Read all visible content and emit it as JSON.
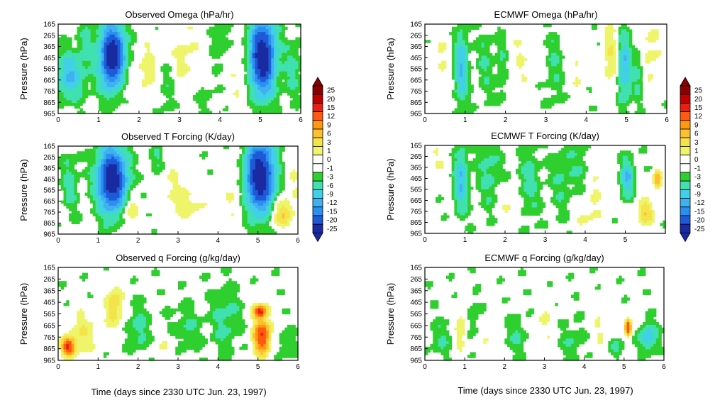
{
  "page": {
    "xlabel_left": "Time (days since 2330 UTC Jun. 23, 1997)",
    "xlabel_right": "Time (days since 2330 UTC Jun. 23, 1997)"
  },
  "palette": {
    "levels": [
      "25",
      "20",
      "15",
      "12",
      "9",
      "6",
      "3",
      "1",
      "0",
      "-1",
      "-3",
      "-6",
      "-9",
      "-12",
      "-15",
      "-20",
      "-25"
    ],
    "colors": [
      "#8b0000",
      "#c00000",
      "#e8200f",
      "#ff5a10",
      "#ff9a10",
      "#ffc030",
      "#f5e34a",
      "#eef56a",
      "#ffffff",
      "#ffffff",
      "#2ecf2e",
      "#40e0b0",
      "#40d0e8",
      "#40b0f0",
      "#2890f0",
      "#1e5ad8",
      "#1a2aa0"
    ],
    "background": "#ffffff"
  },
  "chart_data": [
    {
      "type": "heatmap",
      "title": "Observed Omega (hPa/hr)",
      "ylabel": "Pressure (hPa)",
      "xlabel": "",
      "x_ticks": [
        0,
        1,
        2,
        3,
        4,
        5,
        6
      ],
      "y_ticks": [
        165,
        265,
        365,
        465,
        565,
        665,
        765,
        865,
        965
      ],
      "xlim": [
        0,
        6
      ],
      "ylim": [
        965,
        165
      ],
      "features": [
        {
          "x": 1.35,
          "p": 460,
          "v": -25,
          "sx": 0.22,
          "sy": 200
        },
        {
          "x": 5.05,
          "p": 460,
          "v": -25,
          "sx": 0.22,
          "sy": 230
        },
        {
          "x": 0.3,
          "p": 630,
          "v": -9,
          "sx": 0.25,
          "sy": 150
        },
        {
          "x": 2.2,
          "p": 560,
          "v": 5,
          "sx": 0.18,
          "sy": 160
        },
        {
          "x": 3.1,
          "p": 450,
          "v": 4,
          "sx": 0.3,
          "sy": 220
        },
        {
          "x": 4.0,
          "p": 300,
          "v": -3,
          "sx": 0.15,
          "sy": 150
        },
        {
          "x": 5.8,
          "p": 560,
          "v": -4,
          "sx": 0.15,
          "sy": 200
        },
        {
          "x": 0.7,
          "p": 300,
          "v": -3,
          "sx": 0.15,
          "sy": 150
        },
        {
          "x": 1.6,
          "p": 650,
          "v": 3,
          "sx": 0.18,
          "sy": 180
        },
        {
          "x": 2.7,
          "p": 700,
          "v": -3,
          "sx": 0.15,
          "sy": 200
        },
        {
          "x": 4.5,
          "p": 650,
          "v": 3,
          "sx": 0.2,
          "sy": 200
        },
        {
          "x": 3.6,
          "p": 800,
          "v": -2,
          "sx": 0.2,
          "sy": 150
        }
      ]
    },
    {
      "type": "heatmap",
      "title": "Observed T Forcing (K/day)",
      "ylabel": "Pressure (hPa)",
      "xlabel": "",
      "x_ticks": [
        0,
        1,
        2,
        3,
        4,
        5,
        6
      ],
      "y_ticks": [
        165,
        265,
        365,
        465,
        565,
        665,
        765,
        865,
        965
      ],
      "xlim": [
        0,
        6
      ],
      "ylim": [
        965,
        165
      ],
      "features": [
        {
          "x": 1.35,
          "p": 470,
          "v": -25,
          "sx": 0.25,
          "sy": 200
        },
        {
          "x": 5.05,
          "p": 440,
          "v": -25,
          "sx": 0.25,
          "sy": 230
        },
        {
          "x": 5.6,
          "p": 780,
          "v": 9,
          "sx": 0.2,
          "sy": 90
        },
        {
          "x": 1.8,
          "p": 760,
          "v": 6,
          "sx": 0.15,
          "sy": 100
        },
        {
          "x": 0.3,
          "p": 480,
          "v": -4,
          "sx": 0.15,
          "sy": 200
        },
        {
          "x": 2.8,
          "p": 500,
          "v": 3,
          "sx": 0.3,
          "sy": 200
        },
        {
          "x": 3.3,
          "p": 700,
          "v": 4,
          "sx": 0.3,
          "sy": 120
        },
        {
          "x": 4.4,
          "p": 600,
          "v": 3,
          "sx": 0.2,
          "sy": 200
        },
        {
          "x": 2.5,
          "p": 300,
          "v": -4,
          "sx": 0.15,
          "sy": 100
        },
        {
          "x": 5.9,
          "p": 500,
          "v": 3,
          "sx": 0.15,
          "sy": 150
        }
      ]
    },
    {
      "type": "heatmap",
      "title": "Observed q Forcing (g/kg/day)",
      "ylabel": "Pressure (hPa)",
      "xlabel": "",
      "x_ticks": [
        0,
        1,
        2,
        3,
        4,
        5,
        6
      ],
      "y_ticks": [
        165,
        265,
        365,
        465,
        565,
        665,
        765,
        865,
        965
      ],
      "xlim": [
        0,
        6
      ],
      "ylim": [
        965,
        165
      ],
      "features": [
        {
          "x": 0.25,
          "p": 850,
          "v": 20,
          "sx": 0.12,
          "sy": 50
        },
        {
          "x": 0.6,
          "p": 740,
          "v": 6,
          "sx": 0.25,
          "sy": 130
        },
        {
          "x": 1.4,
          "p": 500,
          "v": 9,
          "sx": 0.15,
          "sy": 130
        },
        {
          "x": 5.1,
          "p": 760,
          "v": 20,
          "sx": 0.15,
          "sy": 110
        },
        {
          "x": 5.05,
          "p": 540,
          "v": 20,
          "sx": 0.12,
          "sy": 40
        },
        {
          "x": 4.2,
          "p": 600,
          "v": -4,
          "sx": 0.25,
          "sy": 200
        },
        {
          "x": 3.2,
          "p": 700,
          "v": -3,
          "sx": 0.3,
          "sy": 150
        },
        {
          "x": 2.0,
          "p": 700,
          "v": -4,
          "sx": 0.2,
          "sy": 150
        },
        {
          "x": 5.7,
          "p": 820,
          "v": -3,
          "sx": 0.2,
          "sy": 80
        },
        {
          "x": 2.7,
          "p": 850,
          "v": 3,
          "sx": 0.2,
          "sy": 80
        }
      ]
    },
    {
      "type": "heatmap",
      "title": "ECMWF Omega (hPa/hr)",
      "ylabel": "Pressure (hPa)",
      "xlabel": "",
      "x_ticks": [
        0,
        1,
        2,
        3,
        4,
        5,
        6
      ],
      "y_ticks": [
        165,
        265,
        365,
        465,
        565,
        665,
        765,
        865,
        965
      ],
      "xlim": [
        0,
        6
      ],
      "ylim": [
        965,
        165
      ],
      "features": [
        {
          "x": 0.9,
          "p": 560,
          "v": -9,
          "sx": 0.12,
          "sy": 230
        },
        {
          "x": 4.95,
          "p": 560,
          "v": -9,
          "sx": 0.12,
          "sy": 230
        },
        {
          "x": 0.4,
          "p": 500,
          "v": 3,
          "sx": 0.15,
          "sy": 250
        },
        {
          "x": 1.5,
          "p": 500,
          "v": -3,
          "sx": 0.15,
          "sy": 250
        },
        {
          "x": 2.4,
          "p": 450,
          "v": 3,
          "sx": 0.2,
          "sy": 250
        },
        {
          "x": 3.2,
          "p": 550,
          "v": -3,
          "sx": 0.15,
          "sy": 250
        },
        {
          "x": 4.6,
          "p": 450,
          "v": 6,
          "sx": 0.12,
          "sy": 250
        },
        {
          "x": 5.6,
          "p": 400,
          "v": 4,
          "sx": 0.2,
          "sy": 250
        },
        {
          "x": 3.8,
          "p": 550,
          "v": 3,
          "sx": 0.12,
          "sy": 250
        },
        {
          "x": 1.9,
          "p": 550,
          "v": -3,
          "sx": 0.1,
          "sy": 250
        },
        {
          "x": 5.3,
          "p": 600,
          "v": -4,
          "sx": 0.1,
          "sy": 200
        }
      ]
    },
    {
      "type": "heatmap",
      "title": "ECMWF T Forcing (K/day)",
      "ylabel": "Pressure (hPa)",
      "xlabel": "",
      "x_ticks": [
        0,
        1,
        2,
        3,
        4,
        5
      ],
      "y_ticks": [
        165,
        265,
        365,
        465,
        565,
        665,
        765,
        865,
        965
      ],
      "xlim": [
        0,
        6
      ],
      "ylim": [
        965,
        165
      ],
      "features": [
        {
          "x": 0.9,
          "p": 480,
          "v": -9,
          "sx": 0.12,
          "sy": 200
        },
        {
          "x": 5.05,
          "p": 460,
          "v": -9,
          "sx": 0.12,
          "sy": 120
        },
        {
          "x": 5.8,
          "p": 480,
          "v": 12,
          "sx": 0.08,
          "sy": 60
        },
        {
          "x": 5.5,
          "p": 780,
          "v": 9,
          "sx": 0.15,
          "sy": 80
        },
        {
          "x": 0.3,
          "p": 300,
          "v": 3,
          "sx": 0.2,
          "sy": 100
        },
        {
          "x": 1.6,
          "p": 400,
          "v": -4,
          "sx": 0.2,
          "sy": 250
        },
        {
          "x": 2.6,
          "p": 500,
          "v": -4,
          "sx": 0.2,
          "sy": 250
        },
        {
          "x": 3.4,
          "p": 450,
          "v": -3,
          "sx": 0.2,
          "sy": 250
        },
        {
          "x": 4.3,
          "p": 500,
          "v": 3,
          "sx": 0.2,
          "sy": 250
        },
        {
          "x": 2.1,
          "p": 750,
          "v": 3,
          "sx": 0.2,
          "sy": 120
        },
        {
          "x": 4.0,
          "p": 800,
          "v": 3,
          "sx": 0.2,
          "sy": 100
        },
        {
          "x": 3.9,
          "p": 350,
          "v": -3,
          "sx": 0.2,
          "sy": 150
        }
      ]
    },
    {
      "type": "heatmap",
      "title": "ECMWF q Forcing (g/kg/day)",
      "ylabel": "Pressure (hPa)",
      "xlabel": "",
      "x_ticks": [
        0,
        1,
        2,
        3,
        4,
        5,
        6
      ],
      "y_ticks": [
        165,
        265,
        365,
        465,
        565,
        665,
        765,
        865,
        965
      ],
      "xlim": [
        0,
        6
      ],
      "ylim": [
        965,
        165
      ],
      "features": [
        {
          "x": 5.1,
          "p": 680,
          "v": 20,
          "sx": 0.06,
          "sy": 50
        },
        {
          "x": 0.9,
          "p": 700,
          "v": 6,
          "sx": 0.1,
          "sy": 130
        },
        {
          "x": 5.6,
          "p": 760,
          "v": -9,
          "sx": 0.15,
          "sy": 80
        },
        {
          "x": 0.4,
          "p": 780,
          "v": -3,
          "sx": 0.2,
          "sy": 120
        },
        {
          "x": 1.6,
          "p": 800,
          "v": 3,
          "sx": 0.15,
          "sy": 110
        },
        {
          "x": 2.3,
          "p": 750,
          "v": -3,
          "sx": 0.2,
          "sy": 120
        },
        {
          "x": 3.0,
          "p": 650,
          "v": 3,
          "sx": 0.15,
          "sy": 150
        },
        {
          "x": 3.7,
          "p": 800,
          "v": -3,
          "sx": 0.2,
          "sy": 120
        },
        {
          "x": 4.4,
          "p": 700,
          "v": 3,
          "sx": 0.15,
          "sy": 150
        },
        {
          "x": 4.8,
          "p": 850,
          "v": -3,
          "sx": 0.15,
          "sy": 70
        },
        {
          "x": 1.2,
          "p": 600,
          "v": -3,
          "sx": 0.12,
          "sy": 120
        }
      ]
    }
  ]
}
